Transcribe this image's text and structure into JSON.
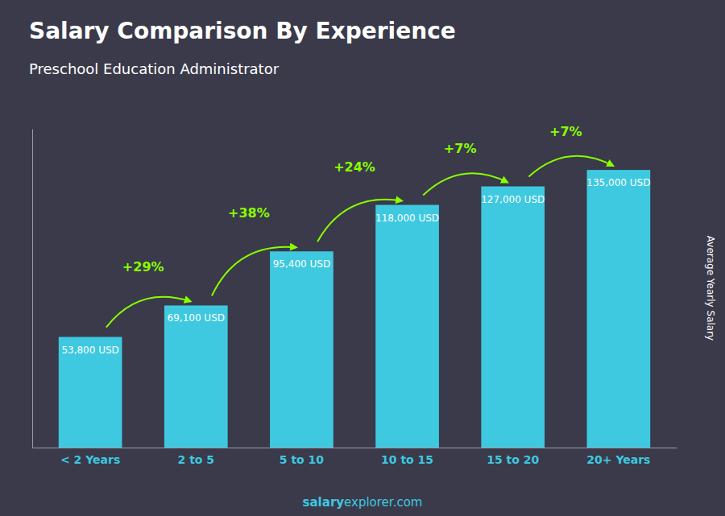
{
  "chart_data": {
    "type": "bar",
    "title": "Salary Comparison By Experience",
    "subtitle": "Preschool Education Administrator",
    "y_label": "Average Yearly Salary",
    "categories": [
      "< 2 Years",
      "2 to 5",
      "5 to 10",
      "10 to 15",
      "15 to 20",
      "20+ Years"
    ],
    "values": [
      53800,
      69100,
      95400,
      118000,
      127000,
      135000
    ],
    "value_labels": [
      "53,800 USD",
      "69,100 USD",
      "95,400 USD",
      "118,000 USD",
      "127,000 USD",
      "135,000 USD"
    ],
    "data_labels": true,
    "color": "#3ec9e0",
    "ylim": [
      0,
      155000
    ],
    "tick_labels": "x",
    "grid": false,
    "annotations": [
      {
        "text": "+29%",
        "from": "< 2 Years",
        "to": "2 to 5",
        "color": "#88ff00"
      },
      {
        "text": "+38%",
        "from": "2 to 5",
        "to": "5 to 10",
        "color": "#88ff00"
      },
      {
        "text": "+24%",
        "from": "5 to 10",
        "to": "10 to 15",
        "color": "#88ff00"
      },
      {
        "text": "+7%",
        "from": "10 to 15",
        "to": "15 to 20",
        "color": "#88ff00"
      },
      {
        "text": "+7%",
        "from": "15 to 20",
        "to": "20+ Years",
        "color": "#88ff00"
      }
    ],
    "footer": [
      "salary",
      "explorer.com"
    ]
  }
}
